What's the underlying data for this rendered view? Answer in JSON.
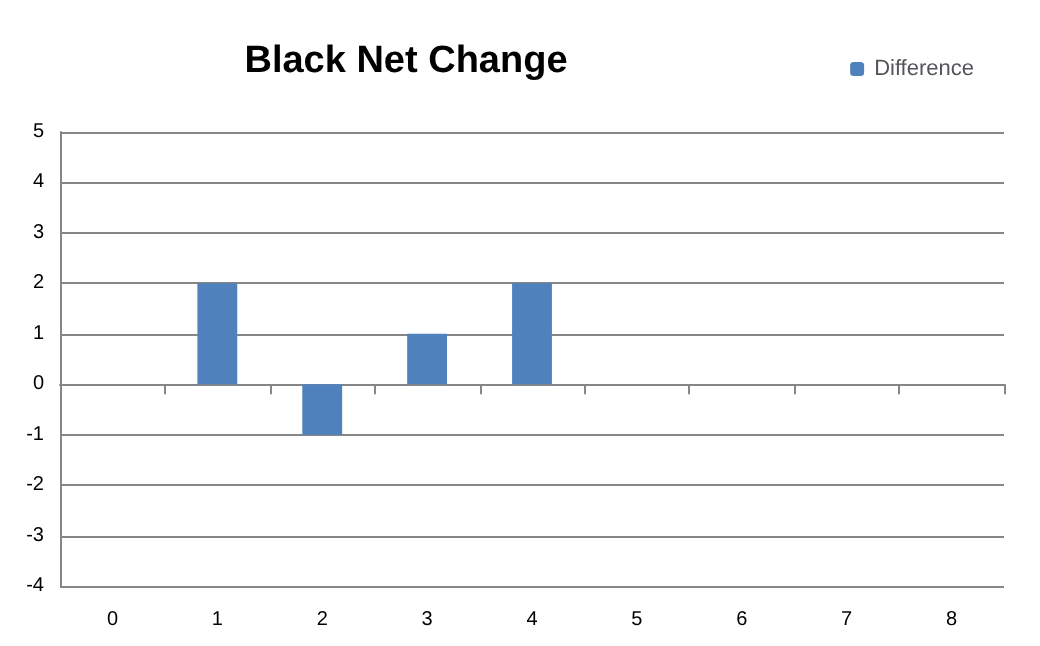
{
  "chart_data": {
    "type": "bar",
    "title": "Black Net Change",
    "categories": [
      "0",
      "1",
      "2",
      "3",
      "4",
      "5",
      "6",
      "7",
      "8"
    ],
    "series": [
      {
        "name": "Difference",
        "color": "#4f81bd",
        "values": [
          0,
          2,
          -1,
          1,
          2,
          0,
          0,
          0,
          0
        ]
      }
    ],
    "ylim": [
      -4,
      5
    ],
    "yticks": [
      -4,
      -3,
      -2,
      -1,
      0,
      1,
      2,
      3,
      4,
      5
    ],
    "grid": "y",
    "legend": "top right"
  }
}
